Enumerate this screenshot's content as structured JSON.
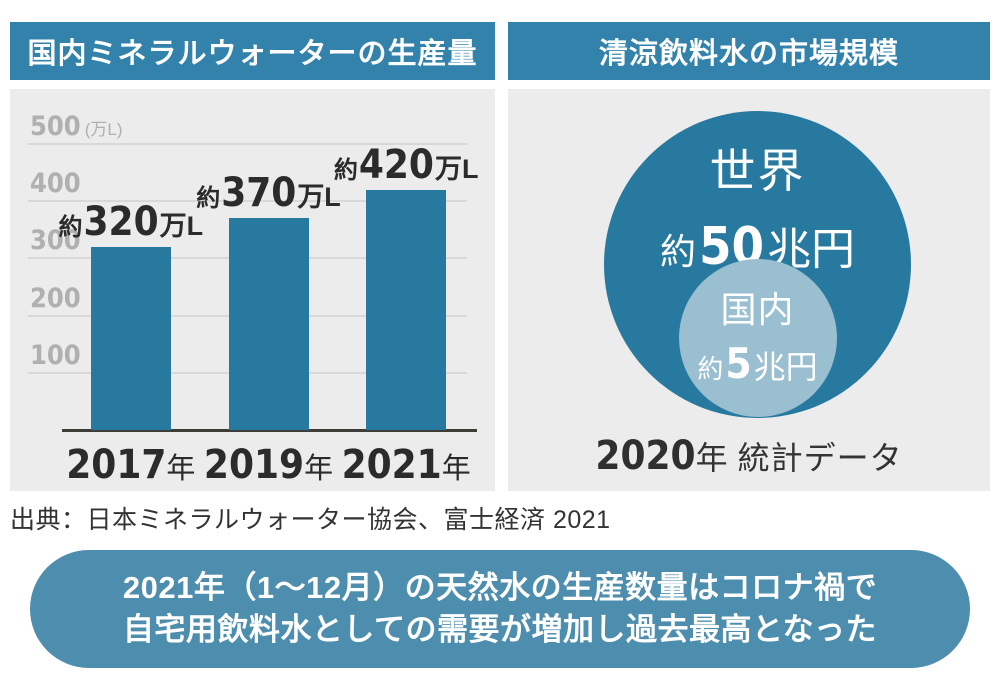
{
  "colors": {
    "header_blue": "#3282ac",
    "bar_blue": "#28799f",
    "circle_blue": "#28799f",
    "inner_circle_blue": "#9abfd0",
    "pill_blue": "#4d8dad",
    "panel_gray": "#ececec",
    "grid_gray": "#d8d8d8",
    "tick_gray": "#b0b0b0",
    "text_dark": "#333333",
    "axis_dark": "#3d3c37"
  },
  "left_panel": {
    "title": "国内ミネラルウォーターの生産量"
  },
  "right_panel": {
    "title": "清涼飲料水の市場規模",
    "outer_circle": {
      "name": "世界",
      "amount": {
        "prefix": "約",
        "value": "50",
        "suffix": "兆円"
      }
    },
    "inner_circle": {
      "name": "国内",
      "amount": {
        "prefix": "約",
        "value": "5",
        "suffix": "兆円"
      }
    },
    "caption": {
      "year": "2020",
      "year_suffix": "年",
      "label": "統計データ"
    }
  },
  "chart_data": [
    {
      "type": "bar",
      "title": "国内ミネラルウォーターの生産量",
      "categories": [
        "2017年",
        "2019年",
        "2021年"
      ],
      "values": [
        320,
        370,
        420
      ],
      "unit": "万L",
      "ylabel": "(万L)",
      "ylim": [
        0,
        500
      ],
      "yticks": [
        100,
        200,
        300,
        400,
        500
      ],
      "grid": true,
      "legend": "none",
      "bars": [
        {
          "value": 320,
          "label_prefix": "約",
          "label_value": "320",
          "label_suffix": "万L",
          "category_value": "2017",
          "category_suffix": "年"
        },
        {
          "value": 370,
          "label_prefix": "約",
          "label_value": "370",
          "label_suffix": "万L",
          "category_value": "2019",
          "category_suffix": "年"
        },
        {
          "value": 420,
          "label_prefix": "約",
          "label_value": "420",
          "label_suffix": "万L",
          "category_value": "2021",
          "category_suffix": "年"
        }
      ]
    },
    {
      "type": "pie",
      "variant": "nested-circles",
      "title": "清涼飲料水の市場規模",
      "series": [
        {
          "name": "世界",
          "label": "約50兆円",
          "value_trillion_yen": 50
        },
        {
          "name": "国内",
          "label": "約5兆円",
          "value_trillion_yen": 5
        }
      ],
      "caption": "2020年 統計データ"
    }
  ],
  "source": "出典：日本ミネラルウォーター協会、富士経済 2021",
  "callout": {
    "line1": "2021年（1〜12月）の天然水の生産数量はコロナ禍で",
    "line2": "自宅用飲料水としての需要が増加し過去最高となった"
  }
}
